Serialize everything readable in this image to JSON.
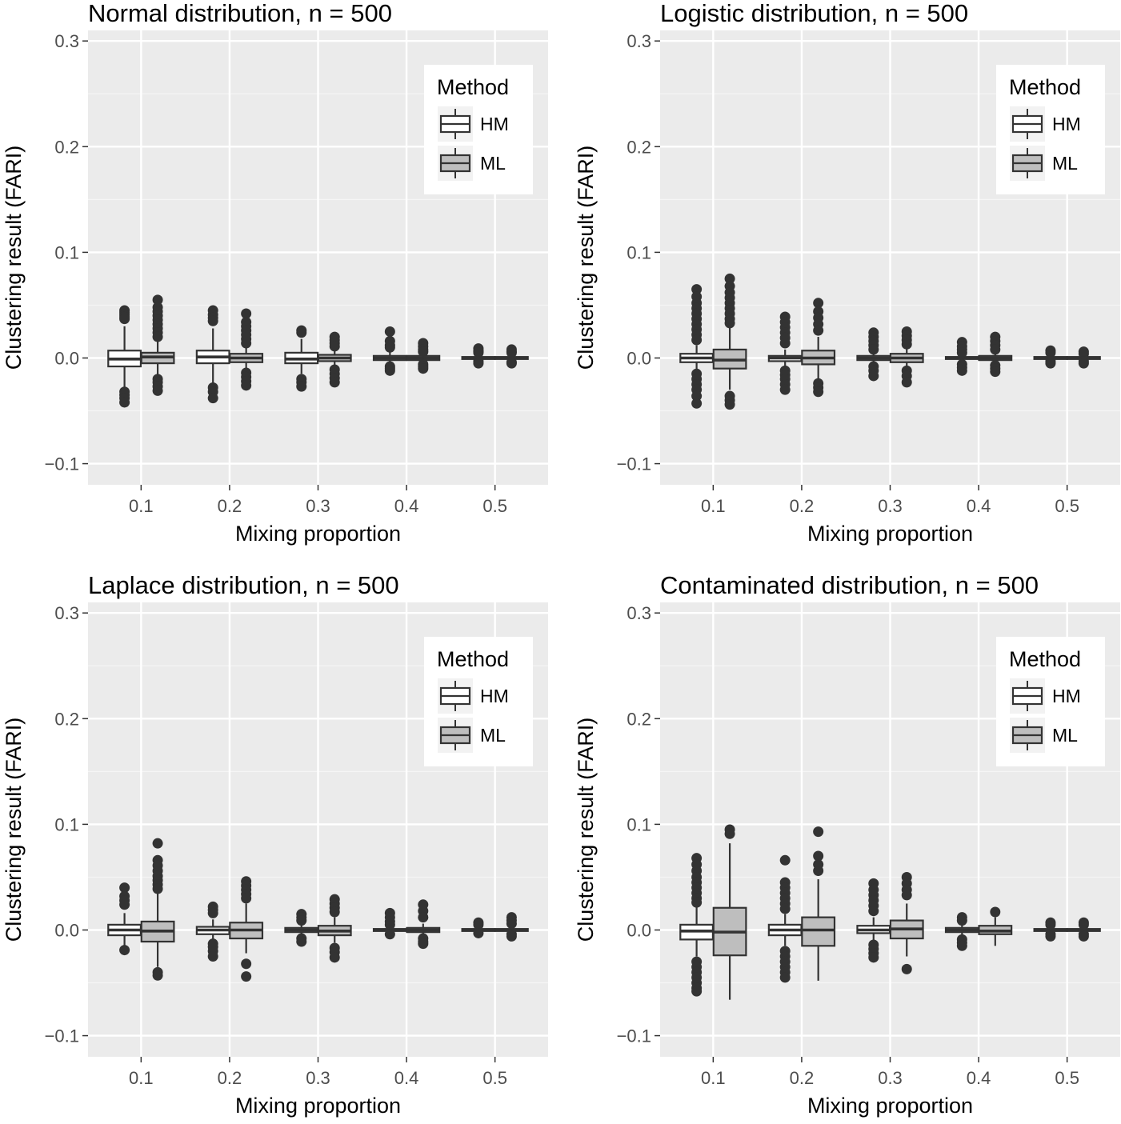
{
  "chart_data": [
    {
      "type": "boxplot",
      "title": "Normal distribution, n = 500",
      "xlabel": "Mixing proportion",
      "ylabel": "Clustering result (FARI)",
      "ylim": [
        -0.12,
        0.31
      ],
      "yticks": [
        "-0.1",
        "0.0",
        "0.1",
        "0.2",
        "0.3"
      ],
      "ytick_values": [
        -0.1,
        0.0,
        0.1,
        0.2,
        0.3
      ],
      "categories": [
        "0.1",
        "0.2",
        "0.3",
        "0.4",
        "0.5"
      ],
      "grid": true,
      "legend": {
        "title": "Method",
        "position": "top-right",
        "entries": [
          "HM",
          "ML"
        ]
      },
      "series": [
        {
          "name": "HM",
          "fill": "#ffffff",
          "boxes": [
            {
              "q1": -0.008,
              "median": -0.001,
              "q3": 0.007,
              "whislo": -0.03,
              "whishi": 0.03,
              "outliers": [
                0.045,
                0.043,
                0.041,
                0.039,
                0.037,
                -0.032,
                -0.035,
                -0.038,
                -0.042
              ]
            },
            {
              "q1": -0.005,
              "median": 0.001,
              "q3": 0.007,
              "whislo": -0.025,
              "whishi": 0.028,
              "outliers": [
                0.045,
                0.041,
                0.038,
                0.035,
                -0.028,
                -0.032,
                -0.038
              ]
            },
            {
              "q1": -0.005,
              "median": -0.001,
              "q3": 0.005,
              "whislo": -0.015,
              "whishi": 0.018,
              "outliers": [
                0.026,
                0.024,
                -0.02,
                -0.023,
                -0.027
              ]
            },
            {
              "q1": -0.002,
              "median": 0.0,
              "q3": 0.002,
              "whislo": -0.006,
              "whishi": 0.008,
              "outliers": [
                0.025,
                0.016,
                0.012,
                0.01,
                -0.008,
                -0.01,
                -0.012
              ]
            },
            {
              "q1": -0.001,
              "median": 0.0,
              "q3": 0.001,
              "whislo": -0.003,
              "whishi": 0.003,
              "outliers": [
                0.009,
                0.007,
                0.006,
                0.005,
                -0.003,
                -0.005
              ]
            }
          ]
        },
        {
          "name": "ML",
          "fill": "#bebebe",
          "boxes": [
            {
              "q1": -0.005,
              "median": 0.001,
              "q3": 0.005,
              "whislo": -0.018,
              "whishi": 0.018,
              "outliers": [
                0.055,
                0.048,
                0.044,
                0.04,
                0.036,
                0.032,
                0.028,
                0.024,
                0.02,
                -0.02,
                -0.023,
                -0.027,
                -0.031
              ]
            },
            {
              "q1": -0.004,
              "median": 0.0,
              "q3": 0.004,
              "whislo": -0.012,
              "whishi": 0.012,
              "outliers": [
                0.042,
                0.034,
                0.03,
                0.026,
                0.022,
                0.018,
                0.014,
                -0.014,
                -0.018,
                -0.022,
                -0.026
              ]
            },
            {
              "q1": -0.003,
              "median": 0.0,
              "q3": 0.003,
              "whislo": -0.008,
              "whishi": 0.008,
              "outliers": [
                0.02,
                0.017,
                0.014,
                0.011,
                -0.011,
                -0.015,
                -0.019,
                -0.023
              ]
            },
            {
              "q1": -0.002,
              "median": 0.0,
              "q3": 0.002,
              "whislo": -0.005,
              "whishi": 0.005,
              "outliers": [
                0.014,
                0.011,
                0.008,
                0.006,
                -0.006,
                -0.008,
                -0.01
              ]
            },
            {
              "q1": -0.001,
              "median": 0.0,
              "q3": 0.001,
              "whislo": -0.003,
              "whishi": 0.003,
              "outliers": [
                0.008,
                0.006,
                0.005,
                -0.004,
                -0.005
              ]
            }
          ]
        }
      ]
    },
    {
      "type": "boxplot",
      "title": "Logistic distribution, n = 500",
      "xlabel": "Mixing proportion",
      "ylabel": "Clustering result (FARI)",
      "ylim": [
        -0.12,
        0.31
      ],
      "yticks": [
        "-0.1",
        "0.0",
        "0.1",
        "0.2",
        "0.3"
      ],
      "ytick_values": [
        -0.1,
        0.0,
        0.1,
        0.2,
        0.3
      ],
      "categories": [
        "0.1",
        "0.2",
        "0.3",
        "0.4",
        "0.5"
      ],
      "grid": true,
      "legend": {
        "title": "Method",
        "position": "top-right",
        "entries": [
          "HM",
          "ML"
        ]
      },
      "series": [
        {
          "name": "HM",
          "fill": "#ffffff",
          "boxes": [
            {
              "q1": -0.004,
              "median": 0.0,
              "q3": 0.004,
              "whislo": -0.012,
              "whishi": 0.012,
              "outliers": [
                0.065,
                0.058,
                0.052,
                0.047,
                0.042,
                0.037,
                0.032,
                0.027,
                0.022,
                0.017,
                -0.015,
                -0.02,
                -0.025,
                -0.03,
                -0.036,
                -0.043
              ]
            },
            {
              "q1": -0.003,
              "median": 0.0,
              "q3": 0.002,
              "whislo": -0.01,
              "whishi": 0.008,
              "outliers": [
                0.039,
                0.034,
                0.029,
                0.024,
                0.019,
                0.014,
                -0.012,
                -0.016,
                -0.02,
                -0.025,
                -0.03
              ]
            },
            {
              "q1": -0.002,
              "median": 0.0,
              "q3": 0.002,
              "whislo": -0.006,
              "whishi": 0.006,
              "outliers": [
                0.024,
                0.02,
                0.016,
                0.012,
                0.008,
                -0.008,
                -0.012,
                -0.017
              ]
            },
            {
              "q1": -0.001,
              "median": 0.0,
              "q3": 0.001,
              "whislo": -0.004,
              "whishi": 0.004,
              "outliers": [
                0.015,
                0.011,
                0.008,
                0.005,
                -0.006,
                -0.009,
                -0.012
              ]
            },
            {
              "q1": -0.001,
              "median": 0.0,
              "q3": 0.001,
              "whislo": -0.002,
              "whishi": 0.002,
              "outliers": [
                0.007,
                0.005,
                -0.003,
                -0.005
              ]
            }
          ]
        },
        {
          "name": "ML",
          "fill": "#bebebe",
          "boxes": [
            {
              "q1": -0.01,
              "median": -0.002,
              "q3": 0.008,
              "whislo": -0.03,
              "whishi": 0.03,
              "outliers": [
                0.075,
                0.068,
                0.062,
                0.057,
                0.052,
                0.047,
                0.042,
                0.037,
                0.033,
                -0.036,
                -0.04,
                -0.044
              ]
            },
            {
              "q1": -0.006,
              "median": 0.0,
              "q3": 0.007,
              "whislo": -0.02,
              "whishi": 0.02,
              "outliers": [
                0.052,
                0.044,
                0.038,
                0.032,
                0.026,
                -0.024,
                -0.028,
                -0.032
              ]
            },
            {
              "q1": -0.004,
              "median": 0.0,
              "q3": 0.004,
              "whislo": -0.01,
              "whishi": 0.012,
              "outliers": [
                0.025,
                0.021,
                0.017,
                0.013,
                -0.012,
                -0.017,
                -0.023
              ]
            },
            {
              "q1": -0.002,
              "median": 0.0,
              "q3": 0.002,
              "whislo": -0.005,
              "whishi": 0.005,
              "outliers": [
                0.02,
                0.016,
                0.012,
                0.008,
                -0.007,
                -0.01,
                -0.013
              ]
            },
            {
              "q1": -0.001,
              "median": 0.0,
              "q3": 0.001,
              "whislo": -0.002,
              "whishi": 0.002,
              "outliers": [
                0.006,
                0.004,
                -0.003,
                -0.005
              ]
            }
          ]
        }
      ]
    },
    {
      "type": "boxplot",
      "title": "Laplace distribution, n = 500",
      "xlabel": "Mixing proportion",
      "ylabel": "Clustering result (FARI)",
      "ylim": [
        -0.12,
        0.31
      ],
      "yticks": [
        "-0.1",
        "0.0",
        "0.1",
        "0.2",
        "0.3"
      ],
      "ytick_values": [
        -0.1,
        0.0,
        0.1,
        0.2,
        0.3
      ],
      "categories": [
        "0.1",
        "0.2",
        "0.3",
        "0.4",
        "0.5"
      ],
      "grid": true,
      "legend": {
        "title": "Method",
        "position": "top-right",
        "entries": [
          "HM",
          "ML"
        ]
      },
      "series": [
        {
          "name": "HM",
          "fill": "#ffffff",
          "boxes": [
            {
              "q1": -0.005,
              "median": 0.0,
              "q3": 0.005,
              "whislo": -0.015,
              "whishi": 0.016,
              "outliers": [
                0.04,
                0.032,
                0.028,
                0.024,
                -0.019
              ]
            },
            {
              "q1": -0.004,
              "median": 0.0,
              "q3": 0.003,
              "whislo": -0.01,
              "whishi": 0.01,
              "outliers": [
                0.022,
                0.019,
                0.016,
                -0.013,
                -0.016,
                -0.02,
                -0.025
              ]
            },
            {
              "q1": -0.002,
              "median": 0.0,
              "q3": 0.002,
              "whislo": -0.006,
              "whishi": 0.006,
              "outliers": [
                0.015,
                0.012,
                0.009,
                -0.008,
                -0.011
              ]
            },
            {
              "q1": -0.001,
              "median": 0.0,
              "q3": 0.001,
              "whislo": -0.004,
              "whishi": 0.004,
              "outliers": [
                0.016,
                0.012,
                0.008,
                0.005,
                -0.004
              ]
            },
            {
              "q1": -0.001,
              "median": 0.0,
              "q3": 0.001,
              "whislo": -0.002,
              "whishi": 0.002,
              "outliers": [
                0.007,
                0.005,
                -0.003
              ]
            }
          ]
        },
        {
          "name": "ML",
          "fill": "#bebebe",
          "boxes": [
            {
              "q1": -0.011,
              "median": -0.001,
              "q3": 0.008,
              "whislo": -0.035,
              "whishi": 0.035,
              "outliers": [
                0.082,
                0.066,
                0.061,
                0.056,
                0.051,
                0.047,
                0.043,
                0.039,
                -0.04,
                -0.043
              ]
            },
            {
              "q1": -0.008,
              "median": 0.0,
              "q3": 0.007,
              "whislo": -0.022,
              "whishi": 0.025,
              "outliers": [
                0.046,
                0.042,
                0.038,
                0.034,
                0.03,
                -0.032,
                -0.044
              ]
            },
            {
              "q1": -0.005,
              "median": -0.001,
              "q3": 0.004,
              "whislo": -0.012,
              "whishi": 0.012,
              "outliers": [
                0.029,
                0.025,
                0.021,
                0.017,
                -0.017,
                -0.021,
                -0.026
              ]
            },
            {
              "q1": -0.002,
              "median": 0.0,
              "q3": 0.002,
              "whislo": -0.006,
              "whishi": 0.006,
              "outliers": [
                0.024,
                0.018,
                0.012,
                -0.008,
                -0.011,
                -0.013
              ]
            },
            {
              "q1": -0.001,
              "median": 0.0,
              "q3": 0.001,
              "whislo": -0.003,
              "whishi": 0.003,
              "outliers": [
                0.012,
                0.009,
                0.006,
                -0.004,
                -0.006
              ]
            }
          ]
        }
      ]
    },
    {
      "type": "boxplot",
      "title": "Contaminated distribution, n = 500",
      "xlabel": "Mixing proportion",
      "ylabel": "Clustering result (FARI)",
      "ylim": [
        -0.12,
        0.31
      ],
      "yticks": [
        "-0.1",
        "0.0",
        "0.1",
        "0.2",
        "0.3"
      ],
      "ytick_values": [
        -0.1,
        0.0,
        0.1,
        0.2,
        0.3
      ],
      "categories": [
        "0.1",
        "0.2",
        "0.3",
        "0.4",
        "0.5"
      ],
      "grid": true,
      "legend": {
        "title": "Method",
        "position": "top-right",
        "entries": [
          "HM",
          "ML"
        ]
      },
      "series": [
        {
          "name": "HM",
          "fill": "#ffffff",
          "boxes": [
            {
              "q1": -0.009,
              "median": -0.001,
              "q3": 0.005,
              "whislo": -0.025,
              "whishi": 0.022,
              "outliers": [
                0.068,
                0.062,
                0.056,
                0.05,
                0.045,
                0.04,
                0.035,
                0.03,
                0.026,
                -0.03,
                -0.035,
                -0.04,
                -0.045,
                -0.05,
                -0.055,
                -0.058
              ]
            },
            {
              "q1": -0.005,
              "median": 0.0,
              "q3": 0.005,
              "whislo": -0.015,
              "whishi": 0.015,
              "outliers": [
                0.066,
                0.045,
                0.04,
                0.035,
                0.03,
                0.025,
                0.02,
                -0.02,
                -0.025,
                -0.03,
                -0.035,
                -0.04,
                -0.045
              ]
            },
            {
              "q1": -0.003,
              "median": 0.0,
              "q3": 0.004,
              "whislo": -0.01,
              "whishi": 0.012,
              "outliers": [
                0.044,
                0.038,
                0.033,
                0.028,
                0.023,
                0.018,
                -0.014,
                -0.018,
                -0.022,
                -0.026
              ]
            },
            {
              "q1": -0.002,
              "median": 0.0,
              "q3": 0.002,
              "whislo": -0.006,
              "whishi": 0.006,
              "outliers": [
                0.012,
                0.009,
                -0.009,
                -0.012,
                -0.015
              ]
            },
            {
              "q1": -0.001,
              "median": 0.0,
              "q3": 0.001,
              "whislo": -0.003,
              "whishi": 0.003,
              "outliers": [
                0.007,
                0.005,
                -0.004,
                -0.006
              ]
            }
          ]
        },
        {
          "name": "ML",
          "fill": "#bebebe",
          "boxes": [
            {
              "q1": -0.024,
              "median": -0.002,
              "q3": 0.021,
              "whislo": -0.066,
              "whishi": 0.082,
              "outliers": [
                0.095,
                0.091
              ]
            },
            {
              "q1": -0.015,
              "median": 0.0,
              "q3": 0.012,
              "whislo": -0.048,
              "whishi": 0.048,
              "outliers": [
                0.093,
                0.07,
                0.062,
                0.056
              ]
            },
            {
              "q1": -0.008,
              "median": 0.001,
              "q3": 0.009,
              "whislo": -0.025,
              "whishi": 0.025,
              "outliers": [
                0.05,
                0.044,
                0.038,
                0.033,
                -0.037
              ]
            },
            {
              "q1": -0.004,
              "median": -0.001,
              "q3": 0.004,
              "whislo": -0.015,
              "whishi": 0.012,
              "outliers": [
                0.017
              ]
            },
            {
              "q1": -0.001,
              "median": 0.0,
              "q3": 0.001,
              "whislo": -0.003,
              "whishi": 0.003,
              "outliers": [
                0.007,
                0.005,
                -0.004,
                -0.006
              ]
            }
          ]
        }
      ]
    }
  ]
}
